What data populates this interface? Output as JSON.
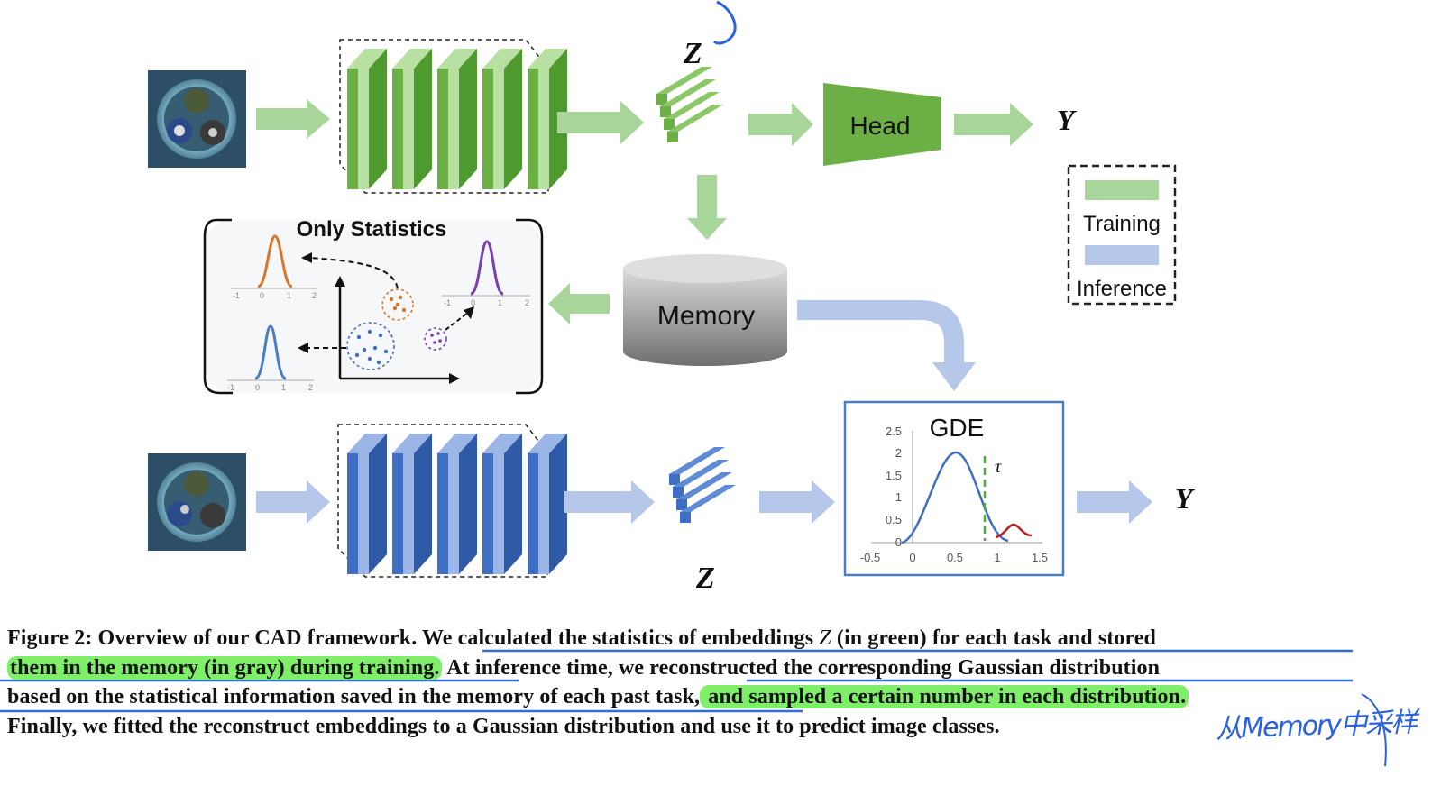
{
  "figure": {
    "z_label_top": "Z",
    "z_label_bottom": "Z",
    "y_label_top": "Y",
    "y_label_bottom": "Y",
    "head_label": "Head",
    "memory_label": "Memory",
    "stats_title": "Only Statistics",
    "legend": {
      "training": "Training",
      "inference": "Inference"
    },
    "gde": {
      "title": "GDE",
      "tau": "τ",
      "y_ticks": [
        "2.5",
        "2",
        "1.5",
        "1",
        "0.5",
        "0"
      ],
      "x_ticks": [
        "-0.5",
        "0",
        "0.5",
        "1",
        "1.5"
      ]
    },
    "mini_plot_ticks": [
      "-1",
      "0",
      "1",
      "2"
    ],
    "mini_plot_ticks_2": [
      "-1",
      "0",
      "1",
      "2"
    ],
    "colors": {
      "training": "#a8d59a",
      "inference": "#b6c8ea",
      "encoder_green": "#6cb045",
      "encoder_blue": "#3f6fc4",
      "annotation_blue": "#2a62e0",
      "highlight": "#7fef6a"
    }
  },
  "caption": {
    "l1a": "Figure 2: Overview of our CAD framework. ",
    "l1b": "We calculated the statistics of embeddings ",
    "l1z": "Z",
    "l1c": " (in green) for each task and stored",
    "l2a": "them in the memory (in gray) during training.",
    "l2b": " At inference time, we ",
    "l2c": "reconstructed the corresponding Gaussian distribution",
    "l3a": "based on the statistical information saved in the memory of each past task,",
    "l3b": " and sampled a certain number in each distribution.",
    "l4": "Finally, we fitted the reconstruct embeddings to a Gaussian distribution and use it to predict image classes."
  },
  "handwritten_note": "从Memory中采样"
}
